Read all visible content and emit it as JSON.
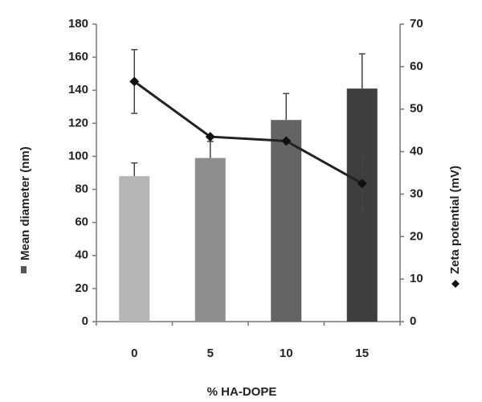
{
  "chart_data": {
    "type": "bar",
    "xlabel": "% HA-DOPE",
    "categories": [
      "0",
      "5",
      "10",
      "15"
    ],
    "left_axis": {
      "label": "Mean diameter (nm)",
      "legend_marker": "bar-swatch",
      "ylim": [
        0,
        180
      ],
      "ticks": [
        0,
        20,
        40,
        60,
        80,
        100,
        120,
        140,
        160,
        180
      ]
    },
    "right_axis": {
      "label": "Zeta potential (mV)",
      "legend_marker": "diamond",
      "ylim": [
        0,
        70
      ],
      "ticks": [
        0,
        10,
        20,
        30,
        40,
        50,
        60,
        70
      ]
    },
    "series": [
      {
        "type": "bar",
        "axis": "left",
        "values": [
          88,
          99,
          122,
          141
        ],
        "errors": [
          8,
          10,
          16,
          21
        ],
        "colors": [
          "#b5b5b5",
          "#8e8e8e",
          "#646464",
          "#3e3e3e"
        ]
      },
      {
        "type": "line",
        "axis": "right",
        "values": [
          56.5,
          43.5,
          42.5,
          32.5
        ],
        "errors": [
          7.5,
          0,
          0,
          6.5
        ],
        "color": "#222222"
      }
    ],
    "grid": false
  }
}
